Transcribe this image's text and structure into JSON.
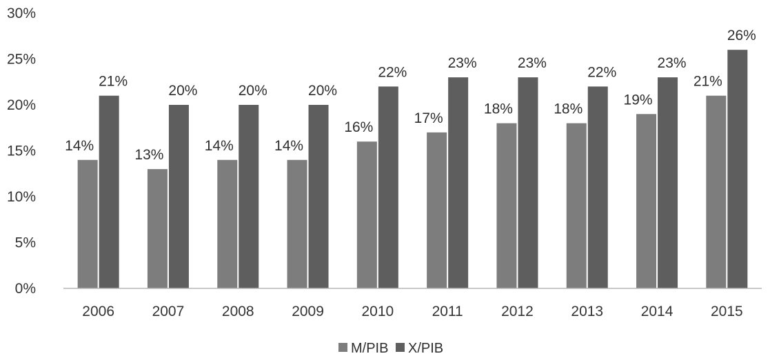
{
  "chart_data": {
    "type": "bar",
    "categories": [
      "2006",
      "2007",
      "2008",
      "2009",
      "2010",
      "2011",
      "2012",
      "2013",
      "2014",
      "2015"
    ],
    "series": [
      {
        "name": "M/PIB",
        "values": [
          14,
          13,
          14,
          14,
          16,
          17,
          18,
          18,
          19,
          21
        ],
        "labels": [
          "14%",
          "13%",
          "14%",
          "14%",
          "16%",
          "17%",
          "18%",
          "18%",
          "19%",
          "21%"
        ],
        "color": "#7d7d7d"
      },
      {
        "name": "X/PIB",
        "values": [
          21,
          20,
          20,
          20,
          22,
          23,
          23,
          22,
          23,
          26
        ],
        "labels": [
          "21%",
          "20%",
          "20%",
          "20%",
          "22%",
          "23%",
          "23%",
          "22%",
          "23%",
          "26%"
        ],
        "color": "#5e5e5e"
      }
    ],
    "ylim": [
      0,
      30
    ],
    "yticks": [
      "0%",
      "5%",
      "10%",
      "15%",
      "20%",
      "25%",
      "30%"
    ],
    "ytick_values": [
      0,
      5,
      10,
      15,
      20,
      25,
      30
    ],
    "grid": false,
    "legend_position": "bottom"
  }
}
